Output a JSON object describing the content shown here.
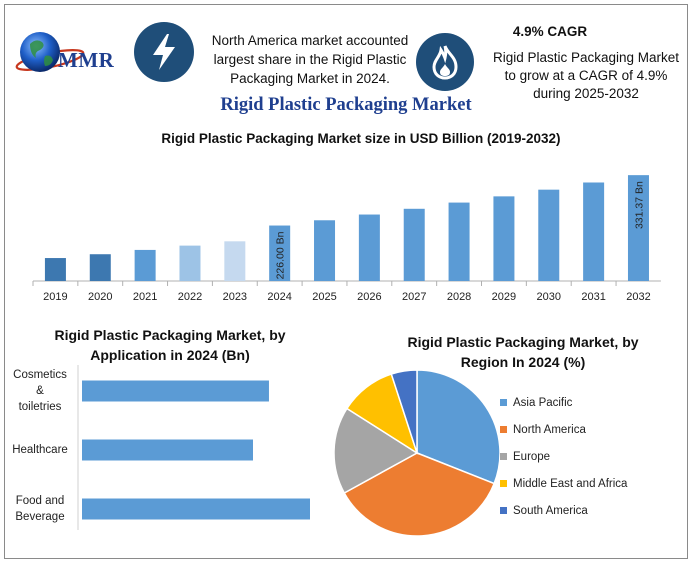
{
  "header": {
    "logo_text": "MMR",
    "highlight_text": "North America market accounted largest share in the Rigid Plastic Packaging Market in 2024.",
    "cagr_title": "4.9% CAGR",
    "cagr_text": "Rigid Plastic Packaging Market to grow at a CAGR of 4.9% during 2025-2032",
    "icons": [
      "globe-icon",
      "lightning-icon",
      "flame-icon"
    ]
  },
  "main_title": "Rigid Plastic Packaging Market",
  "colors": {
    "title_blue": "#1f3f8f",
    "icon_bg": "#1f4e79",
    "bar_blue": "#5b9bd5"
  },
  "chart_data": [
    {
      "type": "bar",
      "title": "Rigid Plastic Packaging Market size in USD Billion (2019-2032)",
      "categories": [
        "2019",
        "2020",
        "2021",
        "2022",
        "2023",
        "2024",
        "2025",
        "2026",
        "2027",
        "2028",
        "2029",
        "2030",
        "2031",
        "2032"
      ],
      "values": [
        158,
        166,
        175,
        184,
        193,
        226.0,
        237,
        249,
        261,
        274,
        287,
        301,
        316,
        331.37
      ],
      "bar_colors": [
        "#3d78b0",
        "#3d78b0",
        "#5b9bd5",
        "#9dc3e6",
        "#c5d9ef",
        "#5b9bd5",
        "#5b9bd5",
        "#5b9bd5",
        "#5b9bd5",
        "#5b9bd5",
        "#5b9bd5",
        "#5b9bd5",
        "#5b9bd5",
        "#5b9bd5"
      ],
      "data_labels": {
        "2024": "226.00 Bn",
        "2032": "331.37 Bn"
      },
      "ylim": [
        110,
        340
      ]
    },
    {
      "type": "bar",
      "orientation": "horizontal",
      "title": "Rigid Plastic Packaging Market, by Application in 2024 (Bn)",
      "categories": [
        "Cosmetics & toiletries",
        "Healthcare",
        "Food and Beverage"
      ],
      "category_lines": [
        [
          "Cosmetics",
          "&",
          "toiletries"
        ],
        [
          "Healthcare"
        ],
        [
          "Food and",
          "Beverage"
        ]
      ],
      "values": [
        82,
        75,
        100
      ],
      "xlim": [
        0,
        100
      ]
    },
    {
      "type": "pie",
      "title": "Rigid Plastic Packaging Market, by Region In 2024 (%)",
      "categories": [
        "Asia Pacific",
        "North America",
        "Europe",
        "Middle East and Africa",
        "South America"
      ],
      "values": [
        31,
        36,
        17,
        11,
        5
      ],
      "colors": [
        "#5b9bd5",
        "#ed7d31",
        "#a5a5a5",
        "#ffc000",
        "#4472c4"
      ],
      "legend_position": "right"
    }
  ]
}
